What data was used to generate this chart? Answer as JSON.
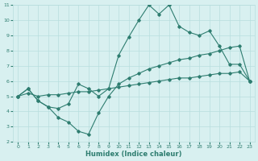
{
  "line1_x": [
    0,
    1,
    2,
    3,
    4,
    5,
    6,
    7,
    8,
    9,
    10,
    11,
    12,
    13,
    14,
    15,
    16,
    17,
    18,
    19,
    20,
    21,
    22,
    23
  ],
  "line1_y": [
    5.0,
    5.5,
    4.7,
    4.3,
    4.2,
    4.5,
    5.8,
    5.5,
    5.0,
    5.5,
    7.7,
    8.9,
    10.0,
    11.0,
    10.4,
    11.0,
    9.6,
    9.2,
    9.0,
    9.3,
    8.3,
    7.1,
    7.1,
    6.0
  ],
  "line2_x": [
    0,
    1,
    2,
    3,
    4,
    5,
    6,
    7,
    8,
    9,
    10,
    11,
    12,
    13,
    14,
    15,
    16,
    17,
    18,
    19,
    20,
    21,
    22,
    23
  ],
  "line2_y": [
    5.0,
    5.5,
    4.7,
    4.3,
    3.6,
    3.3,
    2.7,
    2.5,
    3.9,
    5.0,
    5.8,
    6.2,
    6.5,
    6.8,
    7.0,
    7.2,
    7.4,
    7.5,
    7.7,
    7.8,
    8.0,
    8.2,
    8.3,
    6.0
  ],
  "line3_x": [
    0,
    1,
    2,
    3,
    4,
    5,
    6,
    7,
    8,
    9,
    10,
    11,
    12,
    13,
    14,
    15,
    16,
    17,
    18,
    19,
    20,
    21,
    22,
    23
  ],
  "line3_y": [
    5.0,
    5.2,
    5.0,
    5.1,
    5.1,
    5.2,
    5.3,
    5.3,
    5.4,
    5.5,
    5.6,
    5.7,
    5.8,
    5.9,
    6.0,
    6.1,
    6.2,
    6.2,
    6.3,
    6.4,
    6.5,
    6.5,
    6.6,
    6.0
  ],
  "color": "#2e7d70",
  "bg_color": "#d8f0f0",
  "grid_color": "#b8dede",
  "xlabel": "Humidex (Indice chaleur)",
  "xlim": [
    -0.5,
    23.5
  ],
  "ylim": [
    2,
    11
  ],
  "xticks": [
    0,
    1,
    2,
    3,
    4,
    5,
    6,
    7,
    8,
    9,
    10,
    11,
    12,
    13,
    14,
    15,
    16,
    17,
    18,
    19,
    20,
    21,
    22,
    23
  ],
  "yticks": [
    2,
    3,
    4,
    5,
    6,
    7,
    8,
    9,
    10,
    11
  ]
}
